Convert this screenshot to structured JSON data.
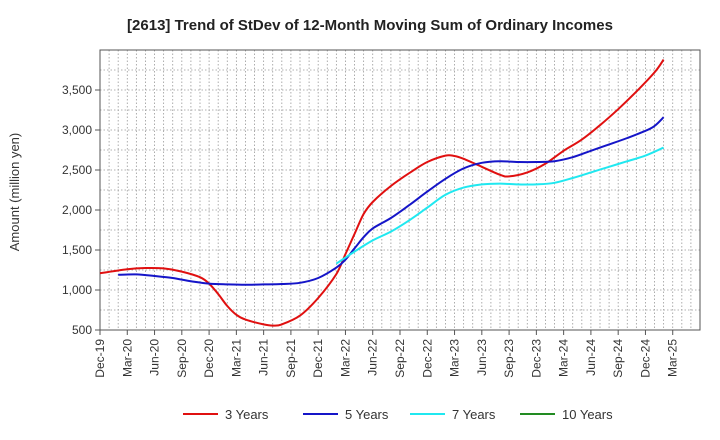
{
  "chart_data": {
    "type": "line",
    "title": "[2613]  Trend of StDev of 12-Month Moving Sum of Ordinary Incomes",
    "xlabel": "",
    "ylabel": "Amount (million yen)",
    "ylim": [
      500,
      4000
    ],
    "yticks": [
      500,
      1000,
      1500,
      2000,
      2500,
      3000,
      3500
    ],
    "ytick_labels": [
      "500",
      "1,000",
      "1,500",
      "2,000",
      "2,500",
      "3,000",
      "3,500"
    ],
    "xlim": [
      0,
      66
    ],
    "categories": [
      "Dec-19",
      "Mar-20",
      "Jun-20",
      "Sep-20",
      "Dec-20",
      "Mar-21",
      "Jun-21",
      "Sep-21",
      "Dec-21",
      "Mar-22",
      "Jun-22",
      "Sep-22",
      "Dec-22",
      "Mar-23",
      "Jun-23",
      "Sep-23",
      "Dec-23",
      "Mar-24",
      "Jun-24",
      "Sep-24",
      "Dec-24",
      "Mar-25"
    ],
    "grid": true,
    "legend_position": "bottom",
    "series": [
      {
        "name": "3 Years",
        "color": "#e01010",
        "points": [
          [
            0,
            1210
          ],
          [
            3,
            1260
          ],
          [
            5,
            1275
          ],
          [
            7,
            1270
          ],
          [
            9,
            1230
          ],
          [
            11,
            1160
          ],
          [
            12,
            1080
          ],
          [
            13,
            950
          ],
          [
            14,
            800
          ],
          [
            15,
            690
          ],
          [
            16,
            630
          ],
          [
            18,
            570
          ],
          [
            19,
            555
          ],
          [
            20,
            570
          ],
          [
            22,
            680
          ],
          [
            24,
            900
          ],
          [
            26,
            1200
          ],
          [
            27,
            1450
          ],
          [
            28,
            1700
          ],
          [
            29,
            1950
          ],
          [
            30,
            2100
          ],
          [
            32,
            2300
          ],
          [
            34,
            2460
          ],
          [
            36,
            2600
          ],
          [
            38,
            2680
          ],
          [
            39,
            2675
          ],
          [
            40,
            2640
          ],
          [
            42,
            2540
          ],
          [
            44,
            2440
          ],
          [
            45,
            2420
          ],
          [
            47,
            2470
          ],
          [
            49,
            2580
          ],
          [
            51,
            2740
          ],
          [
            53,
            2880
          ],
          [
            55,
            3060
          ],
          [
            57,
            3260
          ],
          [
            59,
            3480
          ],
          [
            61,
            3720
          ],
          [
            62,
            3880
          ]
        ]
      },
      {
        "name": "5 Years",
        "color": "#1515c8",
        "points": [
          [
            2,
            1190
          ],
          [
            4,
            1195
          ],
          [
            6,
            1175
          ],
          [
            8,
            1150
          ],
          [
            10,
            1110
          ],
          [
            12,
            1080
          ],
          [
            14,
            1070
          ],
          [
            16,
            1065
          ],
          [
            18,
            1070
          ],
          [
            20,
            1075
          ],
          [
            22,
            1090
          ],
          [
            24,
            1150
          ],
          [
            26,
            1280
          ],
          [
            27,
            1380
          ],
          [
            28,
            1520
          ],
          [
            29,
            1660
          ],
          [
            30,
            1770
          ],
          [
            32,
            1900
          ],
          [
            34,
            2060
          ],
          [
            36,
            2230
          ],
          [
            38,
            2390
          ],
          [
            40,
            2520
          ],
          [
            42,
            2590
          ],
          [
            44,
            2610
          ],
          [
            46,
            2600
          ],
          [
            48,
            2600
          ],
          [
            50,
            2610
          ],
          [
            52,
            2660
          ],
          [
            54,
            2740
          ],
          [
            56,
            2820
          ],
          [
            58,
            2900
          ],
          [
            60,
            2990
          ],
          [
            61,
            3050
          ],
          [
            62,
            3160
          ]
        ]
      },
      {
        "name": "7 Years",
        "color": "#20e8f0",
        "points": [
          [
            26,
            1330
          ],
          [
            28,
            1480
          ],
          [
            30,
            1620
          ],
          [
            32,
            1730
          ],
          [
            34,
            1870
          ],
          [
            36,
            2030
          ],
          [
            38,
            2190
          ],
          [
            40,
            2280
          ],
          [
            42,
            2320
          ],
          [
            44,
            2330
          ],
          [
            46,
            2320
          ],
          [
            48,
            2320
          ],
          [
            50,
            2340
          ],
          [
            52,
            2400
          ],
          [
            54,
            2470
          ],
          [
            56,
            2540
          ],
          [
            58,
            2610
          ],
          [
            60,
            2680
          ],
          [
            62,
            2780
          ]
        ]
      },
      {
        "name": "10 Years",
        "color": "#228b22",
        "points": []
      }
    ]
  }
}
